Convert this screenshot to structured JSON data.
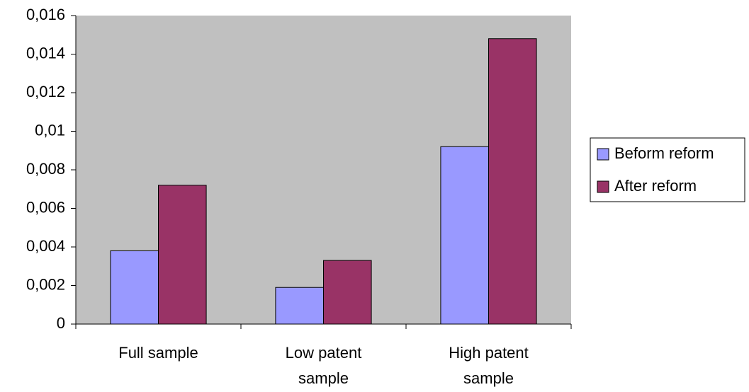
{
  "chart_data": {
    "type": "bar",
    "categories": [
      "Full sample",
      "Low patent sample",
      "High patent sample"
    ],
    "series": [
      {
        "name": "Beform reform",
        "color": "#9999ff",
        "values": [
          0.0038,
          0.0019,
          0.0092
        ]
      },
      {
        "name": "After reform",
        "color": "#993366",
        "values": [
          0.0072,
          0.0033,
          0.0148
        ]
      }
    ],
    "ylim": [
      0,
      0.016
    ],
    "yticks": [
      0,
      {
        "value": 0.002,
        "label": "0,002"
      },
      {
        "value": 0.004,
        "label": "0,004"
      },
      {
        "value": 0.006,
        "label": "0,006"
      },
      {
        "value": 0.008,
        "label": "0,008"
      },
      {
        "value": 0.01,
        "label": "0,01"
      },
      {
        "value": 0.012,
        "label": "0,012"
      },
      {
        "value": 0.014,
        "label": "0,014"
      },
      {
        "value": 0.016,
        "label": "0,016"
      }
    ],
    "plot_background": "#c0c0c0",
    "legend": "right"
  }
}
